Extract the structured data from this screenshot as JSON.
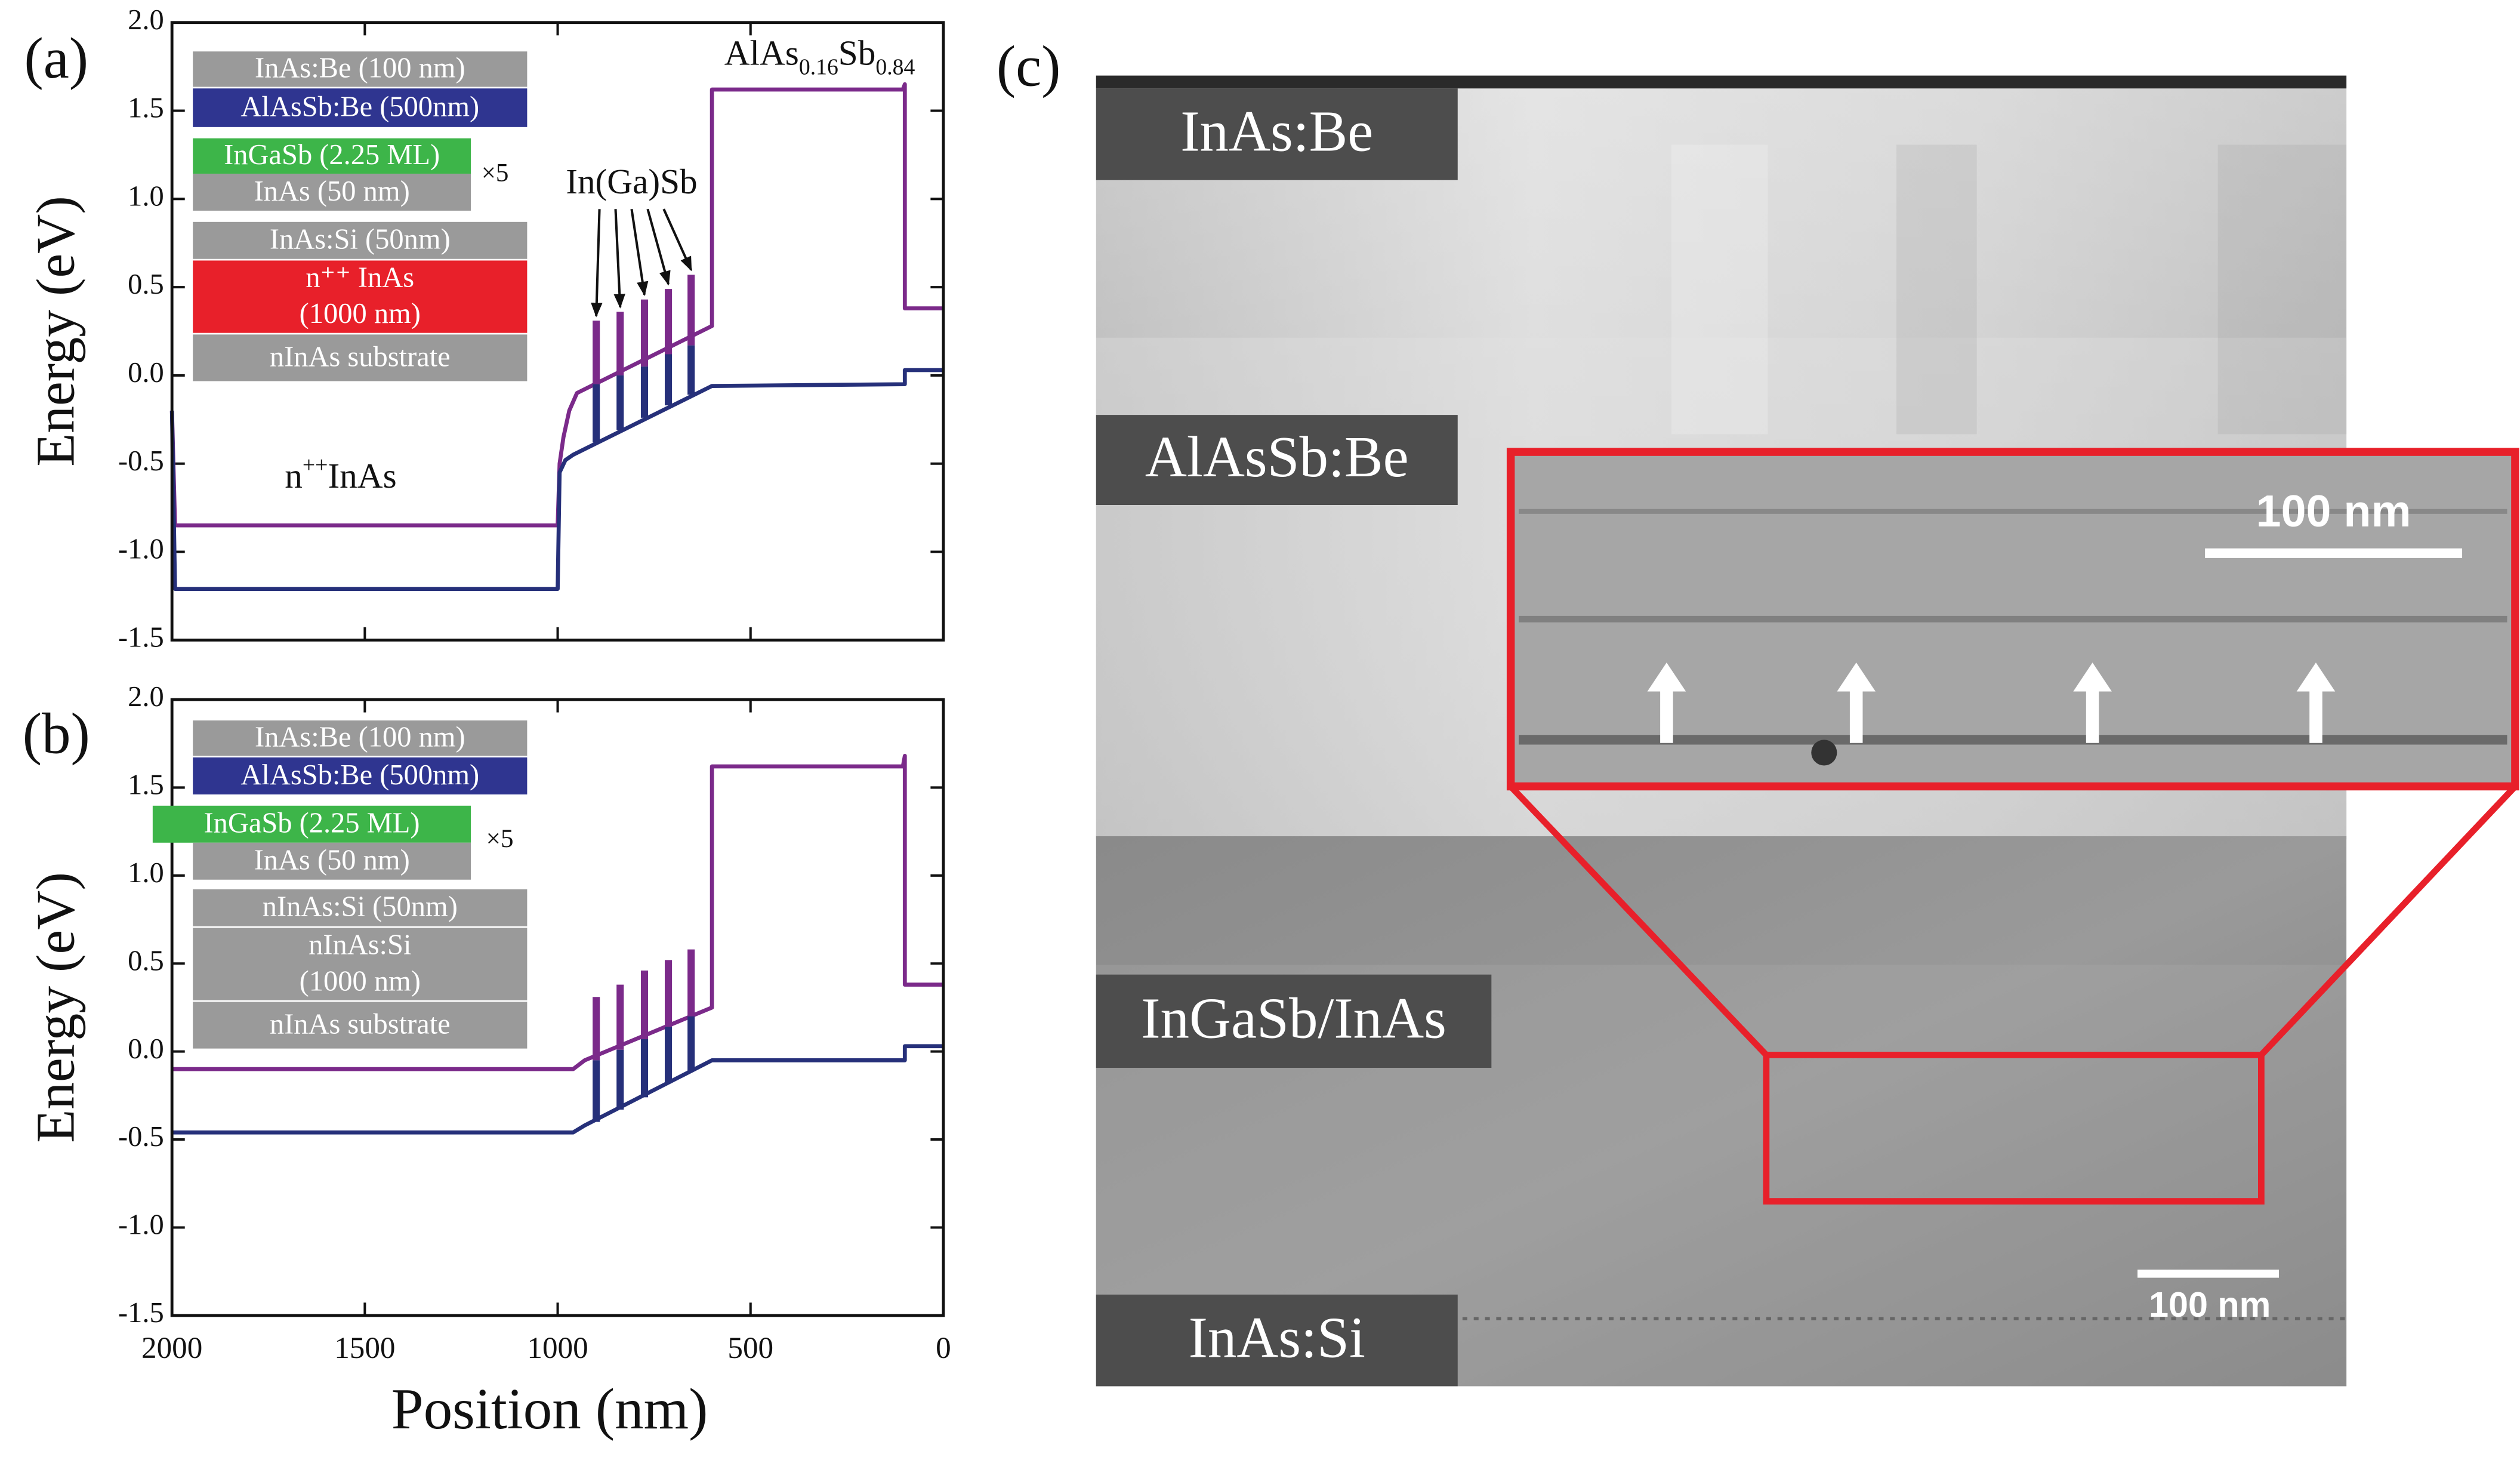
{
  "chart_data": [
    {
      "type": "line",
      "label": "(a)",
      "ylabel": "Energy (eV)",
      "xlim": [
        2000,
        0
      ],
      "xticks": [
        2000,
        1500,
        1000,
        500,
        0
      ],
      "ylim": [
        -1.5,
        2.0
      ],
      "yticks": [
        -1.5,
        {
          "value": -1.0,
          "label": "-1.0"
        },
        -0.5,
        {
          "value": 0.0,
          "label": "0.0"
        },
        0.5,
        {
          "value": 1.0,
          "label": "1.0"
        },
        1.5,
        {
          "value": 2.0,
          "label": "2.0"
        }
      ],
      "series": [
        {
          "color": "#7b2a8a",
          "x": [
            2000,
            1992,
            1000,
            995,
            985,
            970,
            950,
            600,
            600,
            105,
            100,
            100,
            0
          ],
          "values": [
            -0.2,
            -0.85,
            -0.85,
            -0.5,
            -0.35,
            -0.2,
            -0.1,
            0.28,
            1.62,
            1.62,
            1.65,
            0.38,
            0.38
          ]
        },
        {
          "color": "#26307a",
          "x": [
            2000,
            1992,
            1000,
            995,
            980,
            960,
            600,
            100,
            100,
            0
          ],
          "values": [
            -0.2,
            -1.21,
            -1.21,
            -0.55,
            -0.48,
            -0.45,
            -0.06,
            -0.05,
            0.03,
            0.03
          ]
        }
      ],
      "wells": {
        "x": [
          900,
          838,
          775,
          713,
          654
        ],
        "top": [
          0.31,
          0.36,
          0.43,
          0.49,
          0.57
        ],
        "mid": [
          -0.05,
          0.0,
          0.05,
          0.12,
          0.17
        ],
        "bottom": [
          -0.38,
          -0.31,
          -0.24,
          -0.17,
          -0.11
        ],
        "top_color": "#7b2a8a",
        "bottom_color": "#26307a"
      },
      "layers": [
        {
          "lines": [
            "InAs:Be (100 nm)"
          ],
          "color": "#9a9a9a"
        },
        {
          "lines": [
            "AlAsSb:Be (500nm)"
          ],
          "color": "#2f3590"
        },
        {
          "lines": [
            "InGaSb (2.25 ML)"
          ],
          "color": "#3db549"
        },
        {
          "lines": [
            "InAs (50 nm)"
          ],
          "color": "#9a9a9a"
        },
        {
          "lines": [
            "InAs:Si (50nm)"
          ],
          "color": "#9a9a9a"
        },
        {
          "lines": [
            "n⁺⁺ InAs",
            "(1000 nm)"
          ],
          "color": "#e8202a"
        },
        {
          "lines": [
            "nInAs substrate"
          ],
          "color": "#9a9a9a"
        }
      ],
      "multiplier": "×5",
      "annotations": [
        {
          "segments": [
            {
              "text": "In(Ga)Sb"
            }
          ]
        },
        {
          "segments": [
            {
              "text": "n"
            },
            {
              "text": "++",
              "sup": true
            },
            {
              "text": "InAs"
            }
          ]
        },
        {
          "segments": [
            {
              "text": "AlAs"
            },
            {
              "text": "0.16",
              "sub": true
            },
            {
              "text": "Sb"
            },
            {
              "text": "0.84",
              "sub": true
            }
          ]
        }
      ]
    },
    {
      "type": "line",
      "label": "(b)",
      "ylabel": "Energy (eV)",
      "xlabel": "Position (nm)",
      "xlim": [
        2000,
        0
      ],
      "xticks": [
        2000,
        1500,
        1000,
        500,
        0
      ],
      "ylim": [
        -1.5,
        2.0
      ],
      "yticks": [
        -1.5,
        {
          "value": -1.0,
          "label": "-1.0"
        },
        -0.5,
        {
          "value": 0.0,
          "label": "0.0"
        },
        0.5,
        {
          "value": 1.0,
          "label": "1.0"
        },
        1.5,
        {
          "value": 2.0,
          "label": "2.0"
        }
      ],
      "series": [
        {
          "color": "#7b2a8a",
          "x": [
            2000,
            960,
            930,
            600,
            600,
            105,
            100,
            100,
            0
          ],
          "values": [
            -0.1,
            -0.1,
            -0.05,
            0.25,
            1.62,
            1.62,
            1.68,
            0.38,
            0.38
          ]
        },
        {
          "color": "#26307a",
          "x": [
            2000,
            960,
            930,
            600,
            100,
            100,
            0
          ],
          "values": [
            -0.46,
            -0.46,
            -0.42,
            -0.05,
            -0.05,
            0.03,
            0.03
          ]
        }
      ],
      "wells": {
        "x": [
          900,
          838,
          775,
          713,
          654
        ],
        "top": [
          0.31,
          0.38,
          0.46,
          0.52,
          0.58
        ],
        "mid": [
          -0.05,
          0.01,
          0.07,
          0.14,
          0.2
        ],
        "bottom": [
          -0.4,
          -0.33,
          -0.26,
          -0.18,
          -0.11
        ],
        "top_color": "#7b2a8a",
        "bottom_color": "#26307a"
      },
      "layers": [
        {
          "lines": [
            "InAs:Be (100 nm)"
          ],
          "color": "#9a9a9a"
        },
        {
          "lines": [
            "AlAsSb:Be (500nm)"
          ],
          "color": "#2f3590"
        },
        {
          "lines": [
            "InGaSb (2.25 ML)"
          ],
          "color": "#3db549"
        },
        {
          "lines": [
            "InAs (50 nm)"
          ],
          "color": "#9a9a9a"
        },
        {
          "lines": [
            "nInAs:Si (50nm)"
          ],
          "color": "#9a9a9a"
        },
        {
          "lines": [
            "nInAs:Si",
            "(1000 nm)"
          ],
          "color": "#9a9a9a"
        },
        {
          "lines": [
            "nInAs substrate"
          ],
          "color": "#9a9a9a"
        }
      ],
      "multiplier": "×5",
      "annotations": []
    }
  ],
  "image_panel": {
    "label": "(c)",
    "layers": [
      "InAs:Be",
      "AlAsSb:Be",
      "InGaSb/InAs",
      "InAs:Si"
    ],
    "scale_bars": [
      "100 nm",
      "100 nm"
    ]
  }
}
